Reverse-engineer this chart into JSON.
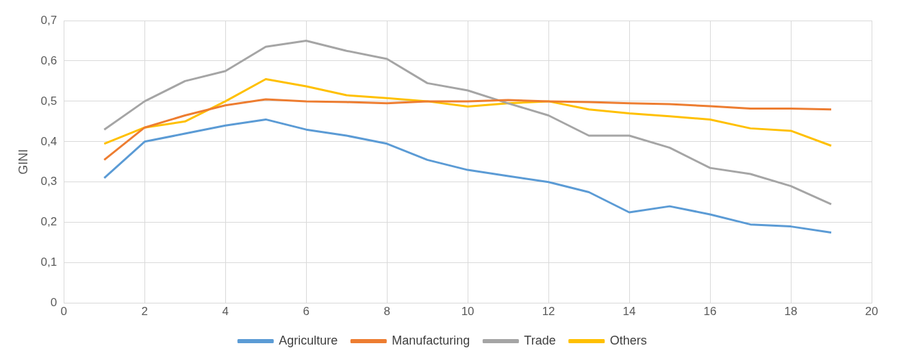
{
  "chart_data": {
    "type": "line",
    "ylabel": "GINI",
    "x": [
      1,
      2,
      3,
      4,
      5,
      6,
      7,
      8,
      9,
      10,
      11,
      12,
      13,
      14,
      15,
      16,
      17,
      18,
      19
    ],
    "series": [
      {
        "name": "Agriculture",
        "color": "#5b9bd5",
        "values": [
          0.31,
          0.4,
          0.42,
          0.44,
          0.455,
          0.43,
          0.415,
          0.395,
          0.355,
          0.33,
          0.315,
          0.3,
          0.275,
          0.225,
          0.24,
          0.22,
          0.195,
          0.19,
          0.175
        ]
      },
      {
        "name": "Manufacturing",
        "color": "#ed7d31",
        "values": [
          0.355,
          0.435,
          0.465,
          0.49,
          0.505,
          0.5,
          0.498,
          0.495,
          0.5,
          0.5,
          0.503,
          0.5,
          0.498,
          0.495,
          0.493,
          0.488,
          0.482,
          0.482,
          0.48
        ]
      },
      {
        "name": "Trade",
        "color": "#a5a5a5",
        "values": [
          0.43,
          0.5,
          0.55,
          0.575,
          0.635,
          0.65,
          0.625,
          0.605,
          0.545,
          0.527,
          0.495,
          0.465,
          0.415,
          0.415,
          0.385,
          0.335,
          0.32,
          0.29,
          0.245
        ]
      },
      {
        "name": "Others",
        "color": "#ffc000",
        "values": [
          0.395,
          0.435,
          0.45,
          0.5,
          0.555,
          0.537,
          0.515,
          0.508,
          0.5,
          0.487,
          0.495,
          0.5,
          0.48,
          0.47,
          0.463,
          0.455,
          0.433,
          0.427,
          0.39
        ]
      }
    ],
    "xlim": [
      0,
      20
    ],
    "xticks": [
      0,
      2,
      4,
      6,
      8,
      10,
      12,
      14,
      16,
      18,
      20
    ],
    "ylim": [
      0,
      0.7
    ],
    "yticks": [
      {
        "value": 0,
        "label": "0"
      },
      {
        "value": 0.1,
        "label": "0,1"
      },
      {
        "value": 0.2,
        "label": "0,2"
      },
      {
        "value": 0.3,
        "label": "0,3"
      },
      {
        "value": 0.4,
        "label": "0,4"
      },
      {
        "value": 0.5,
        "label": "0,5"
      },
      {
        "value": 0.6,
        "label": "0,6"
      },
      {
        "value": 0.7,
        "label": "0,7"
      }
    ],
    "grid": true,
    "legend": "bottom",
    "marker": "none",
    "line_style": "solid"
  }
}
